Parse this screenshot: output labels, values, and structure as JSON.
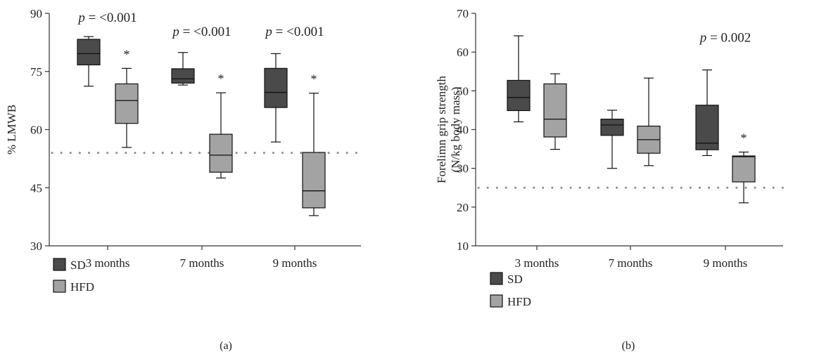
{
  "colors": {
    "sd": "#4a4a4a",
    "hfd": "#a3a3a3",
    "axis": "#333333",
    "reference": "#8c8c8c"
  },
  "chart_data": [
    {
      "type": "box",
      "panel_label": "(a)",
      "ylabel": "% LMWB",
      "ylim": [
        30,
        90
      ],
      "yticks": [
        30,
        45,
        60,
        75,
        90
      ],
      "categories": [
        "3 months",
        "7 months",
        "9 months"
      ],
      "reference_line": 54,
      "series": [
        {
          "name": "SD",
          "color_key": "sd",
          "boxes": [
            {
              "whisker_low": 71.2,
              "q1": 76.7,
              "median": 79.6,
              "q3": 83.3,
              "whisker_high": 84.0
            },
            {
              "whisker_low": 71.5,
              "q1": 72.0,
              "median": 73.1,
              "q3": 75.7,
              "whisker_high": 79.9
            },
            {
              "whisker_low": 56.8,
              "q1": 65.7,
              "median": 69.6,
              "q3": 75.8,
              "whisker_high": 79.6
            }
          ]
        },
        {
          "name": "HFD",
          "color_key": "hfd",
          "boxes": [
            {
              "whisker_low": 55.4,
              "q1": 61.6,
              "median": 67.5,
              "q3": 71.8,
              "whisker_high": 75.8
            },
            {
              "whisker_low": 47.5,
              "q1": 49.0,
              "median": 53.4,
              "q3": 58.8,
              "whisker_high": 69.5
            },
            {
              "whisker_low": 37.8,
              "q1": 39.8,
              "median": 44.2,
              "q3": 54.1,
              "whisker_high": 69.4
            }
          ]
        }
      ],
      "annotations": [
        {
          "category": 0,
          "text": "= <0.001"
        },
        {
          "category": 1,
          "text": "= <0.001"
        },
        {
          "category": 2,
          "text": "= <0.001"
        }
      ],
      "p_symbol": "p",
      "significance": [
        {
          "category": 0,
          "series": 1,
          "text": "*"
        },
        {
          "category": 1,
          "series": 1,
          "text": "*"
        },
        {
          "category": 2,
          "series": 1,
          "text": "*"
        }
      ],
      "legend": [
        "SD",
        "HFD"
      ]
    },
    {
      "type": "box",
      "panel_label": "(b)",
      "ylabel": [
        "Forelimn grip strength",
        "(N/kg body mass)"
      ],
      "ylim": [
        10,
        70
      ],
      "yticks": [
        10,
        20,
        30,
        40,
        50,
        60,
        70
      ],
      "categories": [
        "3 months",
        "7 months",
        "9 months"
      ],
      "reference_line": 25,
      "series": [
        {
          "name": "SD",
          "color_key": "sd",
          "boxes": [
            {
              "whisker_low": 42.0,
              "q1": 44.9,
              "median": 48.3,
              "q3": 52.7,
              "whisker_high": 64.2
            },
            {
              "whisker_low": 30.0,
              "q1": 38.5,
              "median": 41.2,
              "q3": 42.7,
              "whisker_high": 45.0
            },
            {
              "whisker_low": 33.3,
              "q1": 34.8,
              "median": 36.5,
              "q3": 46.3,
              "whisker_high": 55.4
            }
          ]
        },
        {
          "name": "HFD",
          "color_key": "hfd",
          "boxes": [
            {
              "whisker_low": 34.9,
              "q1": 38.1,
              "median": 42.7,
              "q3": 51.8,
              "whisker_high": 54.4
            },
            {
              "whisker_low": 30.7,
              "q1": 33.9,
              "median": 37.4,
              "q3": 40.9,
              "whisker_high": 53.3
            },
            {
              "whisker_low": 21.1,
              "q1": 26.5,
              "median": 33.0,
              "q3": 33.2,
              "whisker_high": 34.2
            }
          ]
        }
      ],
      "annotations": [
        {
          "category": 2,
          "text": "= 0.002"
        }
      ],
      "p_symbol": "p",
      "significance": [
        {
          "category": 2,
          "series": 1,
          "text": "*"
        }
      ],
      "legend": [
        "SD",
        "HFD"
      ]
    }
  ]
}
